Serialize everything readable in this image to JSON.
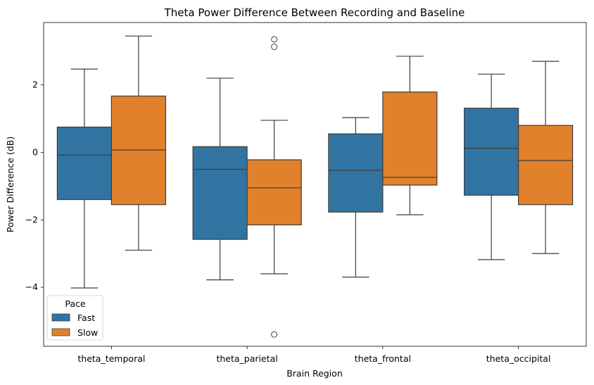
{
  "chart_data": {
    "type": "boxplot",
    "title": "Theta Power Difference Between Recording and Baseline",
    "xlabel": "Brain Region",
    "ylabel": "Power Difference (dB)",
    "categories": [
      "theta_temporal",
      "theta_parietal",
      "theta_frontal",
      "theta_occipital"
    ],
    "ylim": [
      -5.75,
      3.85
    ],
    "yticks": [
      -4,
      -2,
      0,
      2
    ],
    "ytick_labels": [
      "−4",
      "−2",
      "0",
      "2"
    ],
    "grid": false,
    "legend": {
      "title": "Pace",
      "position": "lower-left"
    },
    "series": [
      {
        "name": "Fast",
        "color": "#3274a1",
        "boxes": [
          {
            "whisker_low": -4.02,
            "q1": -1.4,
            "median": -0.08,
            "q3": 0.75,
            "whisker_high": 2.47,
            "outliers": []
          },
          {
            "whisker_low": -3.78,
            "q1": -2.58,
            "median": -0.5,
            "q3": 0.17,
            "whisker_high": 2.2,
            "outliers": []
          },
          {
            "whisker_low": -3.7,
            "q1": -1.77,
            "median": -0.53,
            "q3": 0.55,
            "whisker_high": 1.03,
            "outliers": []
          },
          {
            "whisker_low": -3.18,
            "q1": -1.27,
            "median": 0.12,
            "q3": 1.31,
            "whisker_high": 2.32,
            "outliers": []
          }
        ]
      },
      {
        "name": "Slow",
        "color": "#e1812c",
        "boxes": [
          {
            "whisker_low": -2.9,
            "q1": -1.55,
            "median": 0.07,
            "q3": 1.67,
            "whisker_high": 3.45,
            "outliers": []
          },
          {
            "whisker_low": -3.6,
            "q1": -2.15,
            "median": -1.05,
            "q3": -0.22,
            "whisker_high": 0.95,
            "outliers": [
              3.35,
              3.13,
              -5.4
            ]
          },
          {
            "whisker_low": -1.85,
            "q1": -0.97,
            "median": -0.74,
            "q3": 1.79,
            "whisker_high": 2.85,
            "outliers": []
          },
          {
            "whisker_low": -3.0,
            "q1": -1.55,
            "median": -0.24,
            "q3": 0.8,
            "whisker_high": 2.7,
            "outliers": []
          }
        ]
      }
    ]
  }
}
